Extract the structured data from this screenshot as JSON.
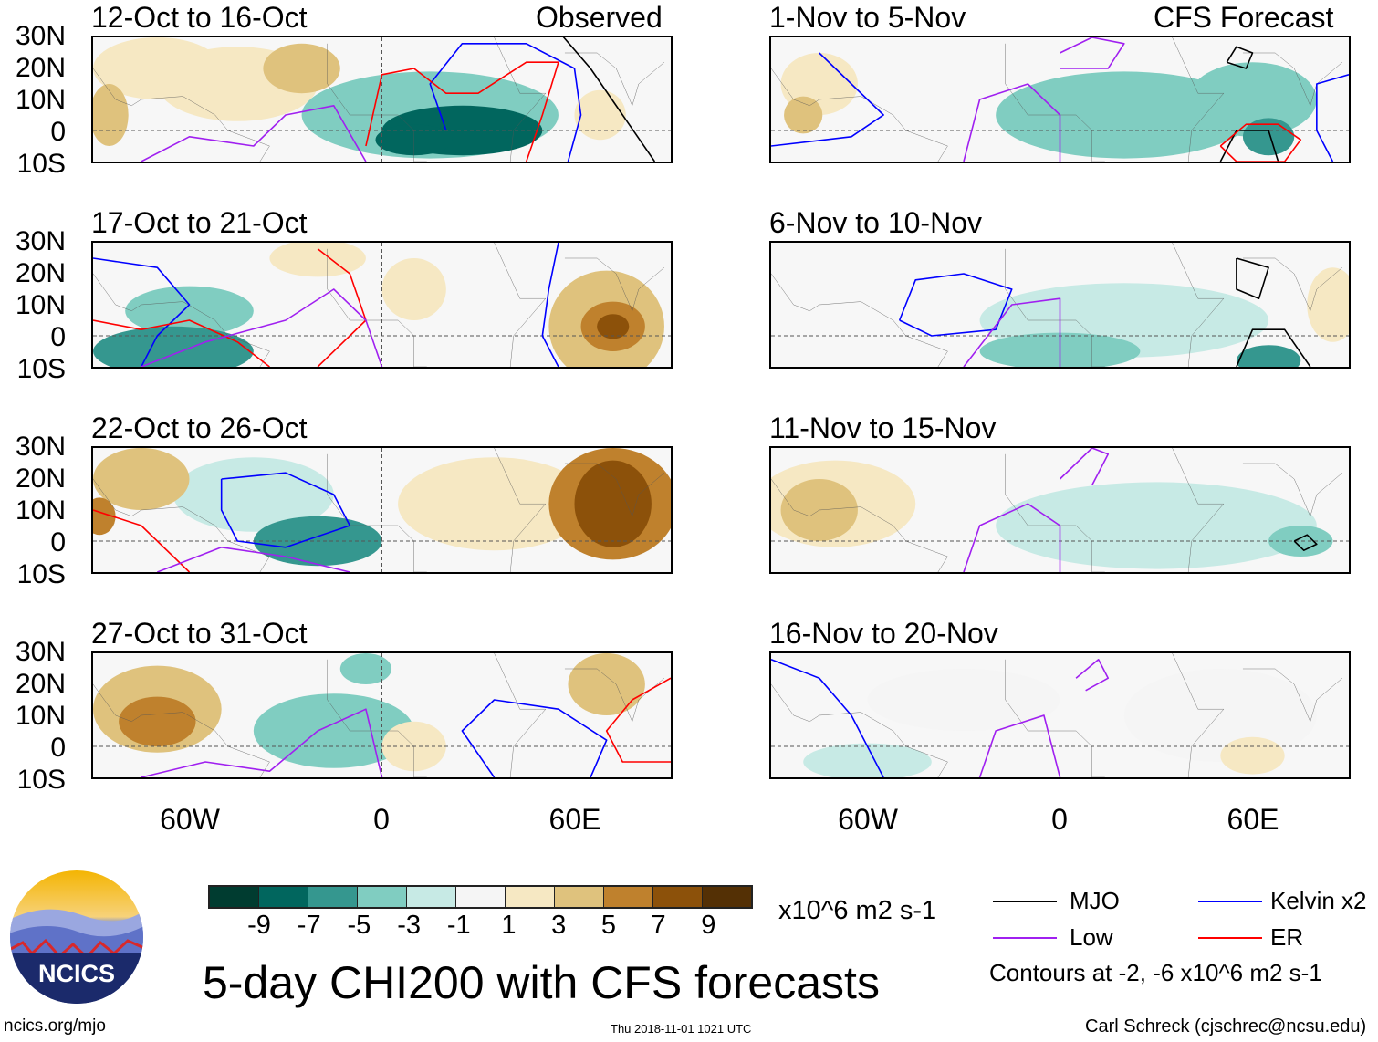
{
  "title": "5-day CHI200 with CFS forecasts",
  "units": "x10^6 m2 s-1",
  "observed_label": "Observed",
  "forecast_label": "CFS Forecast",
  "lat_labels": [
    "30N",
    "20N",
    "10N",
    "0",
    "10S"
  ],
  "lon_labels": [
    "60W",
    "0",
    "60E"
  ],
  "panels": [
    {
      "title": "12-Oct to 16-Oct",
      "col": "observed",
      "blobs": [
        [
          -70,
          20,
          20,
          10,
          3
        ],
        [
          -85,
          5,
          6,
          10,
          5
        ],
        [
          -45,
          15,
          25,
          12,
          3
        ],
        [
          -25,
          20,
          12,
          8,
          5
        ],
        [
          15,
          5,
          40,
          14,
          -3
        ],
        [
          25,
          0,
          25,
          8,
          -7
        ],
        [
          10,
          -3,
          12,
          5,
          -7
        ],
        [
          68,
          5,
          8,
          8,
          3
        ]
      ],
      "contours": [
        {
          "type": "mjo",
          "pts": [
            [
              55,
              32
            ],
            [
              65,
              20
            ],
            [
              75,
              5
            ],
            [
              85,
              -10
            ]
          ]
        },
        {
          "type": "kelvin",
          "pts": [
            [
              20,
              0
            ],
            [
              15,
              15
            ],
            [
              25,
              28
            ],
            [
              45,
              28
            ],
            [
              60,
              20
            ],
            [
              62,
              5
            ],
            [
              58,
              -10
            ]
          ]
        },
        {
          "type": "er",
          "pts": [
            [
              -5,
              -5
            ],
            [
              0,
              18
            ],
            [
              10,
              20
            ],
            [
              20,
              12
            ],
            [
              30,
              12
            ],
            [
              45,
              22
            ],
            [
              55,
              22
            ],
            [
              50,
              5
            ],
            [
              45,
              -10
            ]
          ]
        },
        {
          "type": "low",
          "pts": [
            [
              -75,
              -10
            ],
            [
              -60,
              -2
            ],
            [
              -40,
              -5
            ],
            [
              -30,
              5
            ],
            [
              -15,
              8
            ],
            [
              -5,
              -10
            ]
          ]
        }
      ]
    },
    {
      "title": "17-Oct to 21-Oct",
      "col": "observed",
      "blobs": [
        [
          -65,
          -5,
          25,
          8,
          -5
        ],
        [
          -60,
          8,
          20,
          8,
          -3
        ],
        [
          -20,
          25,
          15,
          6,
          3
        ],
        [
          10,
          15,
          10,
          10,
          3
        ],
        [
          70,
          3,
          18,
          18,
          5
        ],
        [
          72,
          3,
          10,
          8,
          7
        ],
        [
          72,
          3,
          5,
          4,
          9
        ]
      ],
      "contours": [
        {
          "type": "kelvin",
          "pts": [
            [
              -90,
              25
            ],
            [
              -70,
              22
            ],
            [
              -60,
              10
            ],
            [
              -70,
              0
            ],
            [
              -75,
              -10
            ]
          ]
        },
        {
          "type": "kelvin",
          "pts": [
            [
              55,
              30
            ],
            [
              52,
              15
            ],
            [
              50,
              0
            ],
            [
              55,
              -10
            ]
          ]
        },
        {
          "type": "er",
          "pts": [
            [
              -90,
              5
            ],
            [
              -75,
              2
            ],
            [
              -60,
              5
            ],
            [
              -45,
              -2
            ],
            [
              -35,
              -10
            ]
          ]
        },
        {
          "type": "er",
          "pts": [
            [
              -20,
              28
            ],
            [
              -10,
              20
            ],
            [
              -5,
              5
            ],
            [
              -20,
              -10
            ]
          ]
        },
        {
          "type": "low",
          "pts": [
            [
              -75,
              -10
            ],
            [
              -55,
              -2
            ],
            [
              -30,
              5
            ],
            [
              -15,
              15
            ],
            [
              -5,
              5
            ],
            [
              0,
              -10
            ]
          ]
        }
      ]
    },
    {
      "title": "22-Oct to 26-Oct",
      "col": "observed",
      "blobs": [
        [
          -75,
          20,
          15,
          10,
          5
        ],
        [
          -88,
          8,
          5,
          6,
          7
        ],
        [
          -40,
          15,
          25,
          12,
          -1
        ],
        [
          -20,
          0,
          20,
          8,
          -5
        ],
        [
          72,
          12,
          20,
          18,
          7
        ],
        [
          72,
          12,
          12,
          14,
          9
        ],
        [
          35,
          12,
          30,
          15,
          3
        ]
      ],
      "contours": [
        {
          "type": "kelvin",
          "pts": [
            [
              -50,
              20
            ],
            [
              -30,
              22
            ],
            [
              -15,
              15
            ],
            [
              -10,
              5
            ],
            [
              -30,
              -2
            ],
            [
              -45,
              0
            ],
            [
              -50,
              10
            ],
            [
              -50,
              20
            ]
          ]
        },
        {
          "type": "er",
          "pts": [
            [
              -90,
              10
            ],
            [
              -75,
              5
            ],
            [
              -60,
              -10
            ]
          ]
        },
        {
          "type": "low",
          "pts": [
            [
              -70,
              -10
            ],
            [
              -50,
              -2
            ],
            [
              -30,
              -5
            ],
            [
              -10,
              -10
            ]
          ]
        }
      ]
    },
    {
      "title": "27-Oct to 31-Oct",
      "col": "observed",
      "blobs": [
        [
          -70,
          12,
          20,
          14,
          5
        ],
        [
          -70,
          8,
          12,
          8,
          7
        ],
        [
          -15,
          5,
          25,
          12,
          -3
        ],
        [
          -5,
          25,
          8,
          5,
          -3
        ],
        [
          70,
          20,
          12,
          10,
          5
        ],
        [
          10,
          0,
          10,
          8,
          3
        ]
      ],
      "contours": [
        {
          "type": "kelvin",
          "pts": [
            [
              35,
              -10
            ],
            [
              25,
              5
            ],
            [
              35,
              15
            ],
            [
              55,
              12
            ],
            [
              70,
              2
            ],
            [
              65,
              -10
            ]
          ]
        },
        {
          "type": "er",
          "pts": [
            [
              90,
              22
            ],
            [
              78,
              15
            ],
            [
              70,
              5
            ],
            [
              75,
              -5
            ],
            [
              90,
              -5
            ]
          ]
        },
        {
          "type": "low",
          "pts": [
            [
              -75,
              -10
            ],
            [
              -55,
              -5
            ],
            [
              -35,
              -8
            ],
            [
              -20,
              5
            ],
            [
              -5,
              12
            ],
            [
              0,
              -10
            ]
          ]
        }
      ]
    },
    {
      "title": "1-Nov to 5-Nov",
      "col": "forecast",
      "blobs": [
        [
          -75,
          15,
          12,
          10,
          3
        ],
        [
          -80,
          5,
          6,
          6,
          5
        ],
        [
          20,
          5,
          40,
          14,
          -3
        ],
        [
          60,
          10,
          20,
          12,
          -3
        ],
        [
          65,
          -2,
          8,
          6,
          -5
        ]
      ],
      "contours": [
        {
          "type": "mjo",
          "pts": [
            [
              52,
              22
            ],
            [
              58,
              20
            ],
            [
              60,
              25
            ],
            [
              55,
              27
            ],
            [
              52,
              22
            ]
          ]
        },
        {
          "type": "mjo",
          "pts": [
            [
              50,
              -10
            ],
            [
              55,
              0
            ],
            [
              65,
              0
            ],
            [
              68,
              -10
            ]
          ]
        },
        {
          "type": "er",
          "pts": [
            [
              50,
              -5
            ],
            [
              58,
              2
            ],
            [
              68,
              2
            ],
            [
              75,
              -3
            ],
            [
              70,
              -10
            ],
            [
              55,
              -10
            ],
            [
              50,
              -5
            ]
          ]
        },
        {
          "type": "kelvin",
          "pts": [
            [
              -90,
              -5
            ],
            [
              -65,
              -2
            ],
            [
              -55,
              5
            ],
            [
              -65,
              15
            ],
            [
              -75,
              25
            ]
          ]
        },
        {
          "type": "kelvin",
          "pts": [
            [
              90,
              18
            ],
            [
              80,
              15
            ],
            [
              80,
              0
            ],
            [
              85,
              -10
            ]
          ]
        },
        {
          "type": "low",
          "pts": [
            [
              -30,
              -10
            ],
            [
              -25,
              10
            ],
            [
              -10,
              15
            ],
            [
              0,
              5
            ],
            [
              0,
              -10
            ]
          ]
        },
        {
          "type": "low",
          "pts": [
            [
              0,
              25
            ],
            [
              10,
              30
            ],
            [
              20,
              28
            ],
            [
              15,
              20
            ],
            [
              0,
              20
            ]
          ]
        }
      ]
    },
    {
      "title": "6-Nov to 10-Nov",
      "col": "forecast",
      "blobs": [
        [
          20,
          5,
          45,
          12,
          -1
        ],
        [
          0,
          -5,
          25,
          6,
          -3
        ],
        [
          65,
          -8,
          10,
          5,
          -5
        ],
        [
          85,
          10,
          8,
          12,
          3
        ]
      ],
      "contours": [
        {
          "type": "kelvin",
          "pts": [
            [
              -50,
              5
            ],
            [
              -40,
              0
            ],
            [
              -20,
              2
            ],
            [
              -15,
              15
            ],
            [
              -30,
              20
            ],
            [
              -45,
              18
            ],
            [
              -50,
              5
            ]
          ]
        },
        {
          "type": "mjo",
          "pts": [
            [
              55,
              25
            ],
            [
              65,
              22
            ],
            [
              62,
              12
            ],
            [
              55,
              15
            ],
            [
              55,
              25
            ]
          ]
        },
        {
          "type": "mjo",
          "pts": [
            [
              55,
              -10
            ],
            [
              60,
              2
            ],
            [
              70,
              2
            ],
            [
              78,
              -10
            ]
          ]
        },
        {
          "type": "low",
          "pts": [
            [
              -30,
              -10
            ],
            [
              -15,
              10
            ],
            [
              0,
              12
            ],
            [
              0,
              -10
            ]
          ]
        }
      ]
    },
    {
      "title": "11-Nov to 15-Nov",
      "col": "forecast",
      "blobs": [
        [
          -70,
          12,
          25,
          14,
          3
        ],
        [
          -75,
          10,
          12,
          10,
          5
        ],
        [
          30,
          5,
          50,
          14,
          -1
        ],
        [
          75,
          0,
          10,
          5,
          -3
        ]
      ],
      "contours": [
        {
          "type": "mjo",
          "pts": [
            [
              73,
              0
            ],
            [
              77,
              2
            ],
            [
              80,
              -1
            ],
            [
              76,
              -3
            ],
            [
              73,
              0
            ]
          ]
        },
        {
          "type": "low",
          "pts": [
            [
              -30,
              -10
            ],
            [
              -25,
              5
            ],
            [
              -10,
              12
            ],
            [
              0,
              5
            ],
            [
              0,
              -10
            ]
          ]
        },
        {
          "type": "low",
          "pts": [
            [
              0,
              20
            ],
            [
              10,
              30
            ],
            [
              15,
              28
            ],
            [
              10,
              18
            ]
          ]
        }
      ]
    },
    {
      "title": "16-Nov to 20-Nov",
      "col": "forecast",
      "blobs": [
        [
          -30,
          15,
          30,
          10,
          1
        ],
        [
          50,
          10,
          30,
          15,
          1
        ],
        [
          60,
          -3,
          10,
          6,
          3
        ],
        [
          -60,
          -5,
          20,
          6,
          -1
        ]
      ],
      "contours": [
        {
          "type": "kelvin",
          "pts": [
            [
              -90,
              28
            ],
            [
              -75,
              22
            ],
            [
              -65,
              10
            ],
            [
              -55,
              -10
            ]
          ]
        },
        {
          "type": "low",
          "pts": [
            [
              -25,
              -10
            ],
            [
              -20,
              5
            ],
            [
              -5,
              10
            ],
            [
              0,
              -10
            ]
          ]
        },
        {
          "type": "low",
          "pts": [
            [
              5,
              22
            ],
            [
              12,
              28
            ],
            [
              15,
              22
            ],
            [
              8,
              18
            ]
          ]
        }
      ]
    }
  ],
  "colorbar": {
    "levels": [
      "-9",
      "-7",
      "-5",
      "-3",
      "-1",
      "1",
      "3",
      "5",
      "7",
      "9"
    ],
    "colors": [
      "#003c30",
      "#01665e",
      "#35978f",
      "#80cdc1",
      "#c7eae5",
      "#f5f5f5",
      "#f6e8c3",
      "#dfc27d",
      "#bf812d",
      "#8c510a",
      "#543005"
    ]
  },
  "legend": {
    "mjo": "MJO",
    "kelvin": "Kelvin x2",
    "low": "Low",
    "er": "ER",
    "contours_note": "Contours at -2, -6 x10^6 m2 s-1"
  },
  "contour_colors": {
    "mjo": "#000000",
    "kelvin": "#0000ff",
    "low": "#a020f0",
    "er": "#ff0000"
  },
  "logo_text": "NCICS",
  "site": "ncics.org/mjo",
  "timestamp": "Thu 2018-11-01 1021 UTC",
  "credit": "Carl Schreck (cjschrec@ncsu.edu)"
}
